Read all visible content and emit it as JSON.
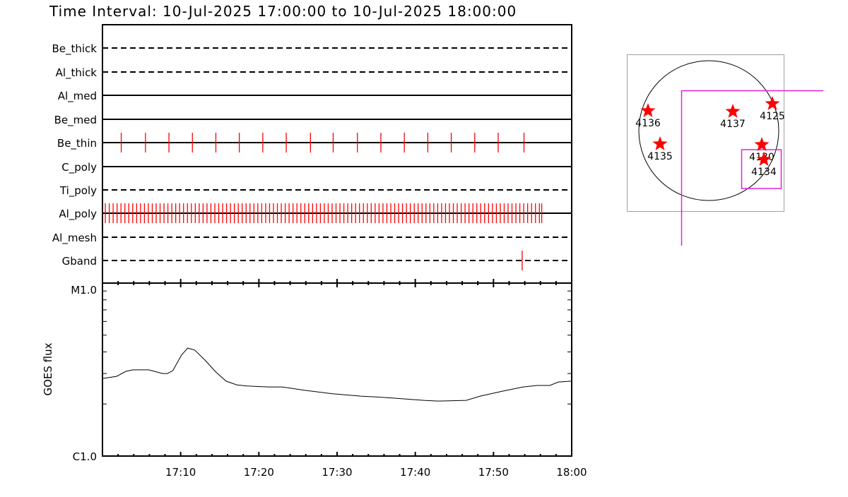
{
  "title": "Time Interval: 10-Jul-2025 17:00:00 to 10-Jul-2025 18:00:00",
  "colors": {
    "event": "#ff0000",
    "axis": "#000000",
    "box": "#e020e0",
    "star": "#ff0000"
  },
  "chart_data": [
    {
      "type": "timeline",
      "xlim": [
        "17:00:00",
        "18:00:00"
      ],
      "rows": [
        {
          "label": "Be_thick",
          "style": "dashed",
          "events": []
        },
        {
          "label": "Al_thick",
          "style": "dashed",
          "events": []
        },
        {
          "label": "Al_med",
          "style": "solid",
          "events": []
        },
        {
          "label": "Be_med",
          "style": "solid",
          "events": []
        },
        {
          "label": "Be_thin",
          "style": "solid",
          "events": [
            "17:02:24",
            "17:05:30",
            "17:08:30",
            "17:11:30",
            "17:14:30",
            "17:17:30",
            "17:20:30",
            "17:23:30",
            "17:26:36",
            "17:29:30",
            "17:32:36",
            "17:35:36",
            "17:38:36",
            "17:41:36",
            "17:44:36",
            "17:47:36",
            "17:50:36",
            "17:53:54"
          ]
        },
        {
          "label": "C_poly",
          "style": "solid",
          "events": []
        },
        {
          "label": "Ti_poly",
          "style": "dashed",
          "events": []
        },
        {
          "label": "Al_poly",
          "style": "solid",
          "events": [
            "17:00:22",
            "17:00:52",
            "17:01:22",
            "17:01:52",
            "17:02:22",
            "17:02:52",
            "17:03:22",
            "17:03:52",
            "17:04:22",
            "17:04:52",
            "17:05:22",
            "17:05:52",
            "17:06:22",
            "17:06:52",
            "17:07:22",
            "17:07:52",
            "17:08:22",
            "17:08:52",
            "17:09:22",
            "17:09:52",
            "17:10:22",
            "17:10:52",
            "17:11:22",
            "17:11:52",
            "17:12:22",
            "17:12:52",
            "17:13:22",
            "17:13:52",
            "17:14:22",
            "17:14:52",
            "17:15:22",
            "17:15:52",
            "17:16:22",
            "17:16:52",
            "17:17:22",
            "17:17:52",
            "17:18:22",
            "17:18:52",
            "17:19:22",
            "17:19:52",
            "17:20:22",
            "17:20:52",
            "17:21:22",
            "17:21:52",
            "17:22:22",
            "17:22:52",
            "17:23:22",
            "17:23:52",
            "17:24:22",
            "17:24:52",
            "17:25:22",
            "17:25:52",
            "17:26:22",
            "17:26:52",
            "17:27:22",
            "17:27:52",
            "17:28:22",
            "17:28:52",
            "17:29:22",
            "17:29:52",
            "17:30:22",
            "17:30:52",
            "17:31:22",
            "17:31:52",
            "17:32:22",
            "17:32:52",
            "17:33:22",
            "17:33:52",
            "17:34:22",
            "17:34:52",
            "17:35:22",
            "17:35:52",
            "17:36:22",
            "17:36:52",
            "17:37:22",
            "17:37:52",
            "17:38:22",
            "17:38:52",
            "17:39:22",
            "17:39:52",
            "17:40:22",
            "17:40:52",
            "17:41:22",
            "17:41:52",
            "17:42:22",
            "17:42:52",
            "17:43:22",
            "17:43:52",
            "17:44:22",
            "17:44:52",
            "17:45:22",
            "17:45:52",
            "17:46:22",
            "17:46:52",
            "17:47:22",
            "17:47:52",
            "17:48:22",
            "17:48:52",
            "17:49:22",
            "17:49:52",
            "17:50:22",
            "17:50:52",
            "17:51:22",
            "17:51:52",
            "17:52:22",
            "17:52:52",
            "17:53:22",
            "17:53:52",
            "17:54:22",
            "17:54:52",
            "17:55:22",
            "17:55:52",
            "17:56:10"
          ]
        },
        {
          "label": "Al_mesh",
          "style": "dashed",
          "events": []
        },
        {
          "label": "Gband",
          "style": "dashed",
          "events": [
            "17:53:40"
          ]
        }
      ]
    },
    {
      "type": "line",
      "ylabel": "GOES flux",
      "yscale": "log",
      "ylim": [
        1e-06,
        1e-05
      ],
      "ytick_labels": [
        "C1.0",
        "M1.0"
      ],
      "xlim": [
        "17:00:00",
        "18:00:00"
      ],
      "xtick_labels": [
        "17:10",
        "17:20",
        "17:30",
        "17:40",
        "17:50",
        "18:00"
      ],
      "x": [
        "17:00:00",
        "17:01:48",
        "17:03:00",
        "17:03:54",
        "17:05:54",
        "17:07:42",
        "17:08:18",
        "17:09:00",
        "17:10:06",
        "17:10:54",
        "17:11:48",
        "17:13:06",
        "17:14:30",
        "17:15:48",
        "17:17:12",
        "17:18:30",
        "17:21:12",
        "17:23:00",
        "17:25:48",
        "17:29:24",
        "17:33:00",
        "17:34:48",
        "17:37:30",
        "17:41:06",
        "17:42:54",
        "17:46:30",
        "17:48:18",
        "17:51:06",
        "17:53:48",
        "17:55:36",
        "17:57:12",
        "17:58:18",
        "18:00:00"
      ],
      "y": [
        2.81e-06,
        2.89e-06,
        3.09e-06,
        3.15e-06,
        3.15e-06,
        3e-06,
        3e-06,
        3.12e-06,
        3.83e-06,
        4.21e-06,
        4.1e-06,
        3.59e-06,
        3.06e-06,
        2.71e-06,
        2.58e-06,
        2.54e-06,
        2.51e-06,
        2.51e-06,
        2.4e-06,
        2.29e-06,
        2.22e-06,
        2.2e-06,
        2.16e-06,
        2.1e-06,
        2.08e-06,
        2.1e-06,
        2.22e-06,
        2.37e-06,
        2.51e-06,
        2.56e-06,
        2.56e-06,
        2.68e-06,
        2.71e-06
      ]
    },
    {
      "type": "scatter",
      "labels": [
        "4136",
        "4137",
        "4125",
        "4135",
        "4130",
        "4134"
      ]
    }
  ]
}
